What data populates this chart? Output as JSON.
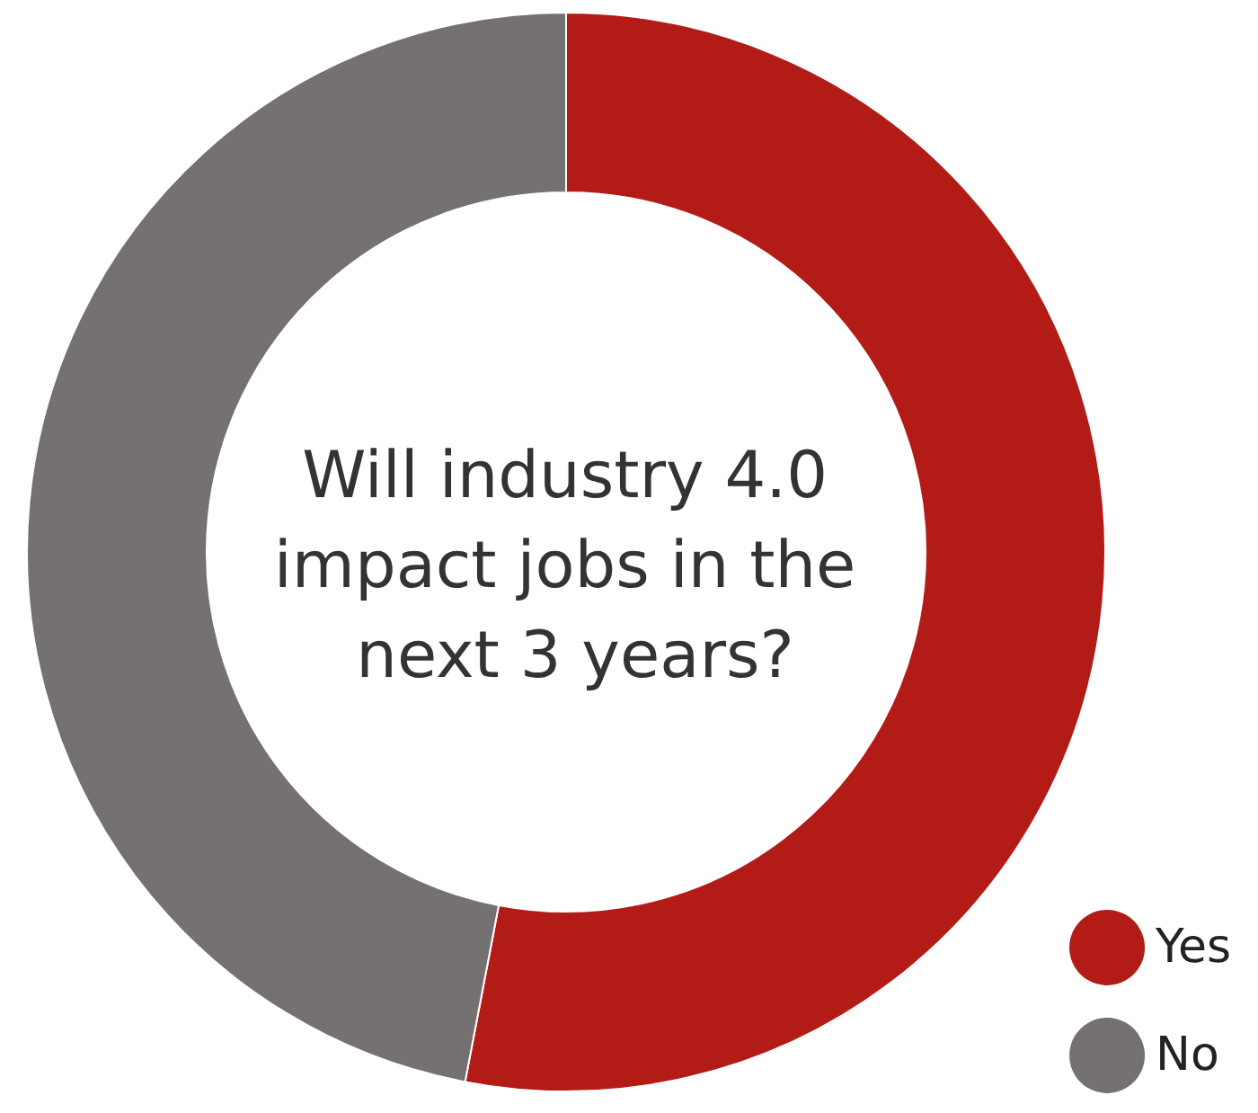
{
  "chart_data": {
    "type": "donut",
    "title": "Will industry 4.0 impact jobs in the next 3 years?",
    "categories": [
      "Yes",
      "No"
    ],
    "values": [
      53,
      47
    ],
    "colors": [
      "#b31b17",
      "#767171"
    ],
    "legend": "bottom right"
  }
}
